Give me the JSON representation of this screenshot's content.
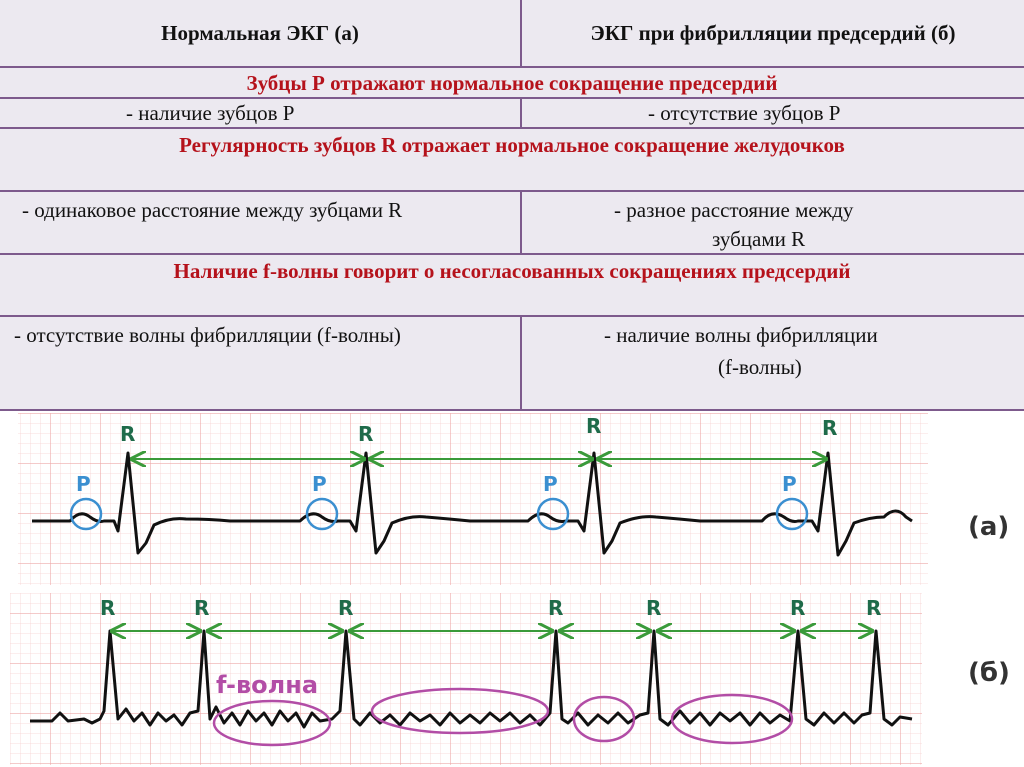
{
  "table": {
    "header_left": "Нормальная ЭКГ (а)",
    "header_right": "ЭКГ при фибрилляции предсердий (б)",
    "section1_title": "Зубцы Р отражают нормальное сокращение предсердий",
    "row1_left": "- наличие зубцов Р",
    "row1_right": "- отсутствие зубцов Р",
    "section2_title": "Регулярность зубцов R отражает нормальное сокращение желудочков",
    "row2_left": "- одинаковое расстояние между зубцами R",
    "row2_right_line1": "- разное расстояние между",
    "row2_right_line2": "зубцами R",
    "section3_title": "Наличие f-волны говорит о несогласованных сокращениях предсердий",
    "row3_left": "- отсутствие волны фибрилляции  (f-волны)",
    "row3_right_line1": "- наличие волны фибрилляции",
    "row3_right_line2": "(f-волны)"
  },
  "ecg": {
    "r_label": "R",
    "p_label": "P",
    "f_wave_label": "f-волна",
    "label_a": "(а)",
    "label_b": "(б)",
    "colors": {
      "trace": "#111111",
      "arrow": "#3a9a3a",
      "r_label": "#1f6b4a",
      "p_circle": "#3b8fd0",
      "f_ellipse": "#b24da6",
      "grid": "#f2b8b8"
    }
  }
}
